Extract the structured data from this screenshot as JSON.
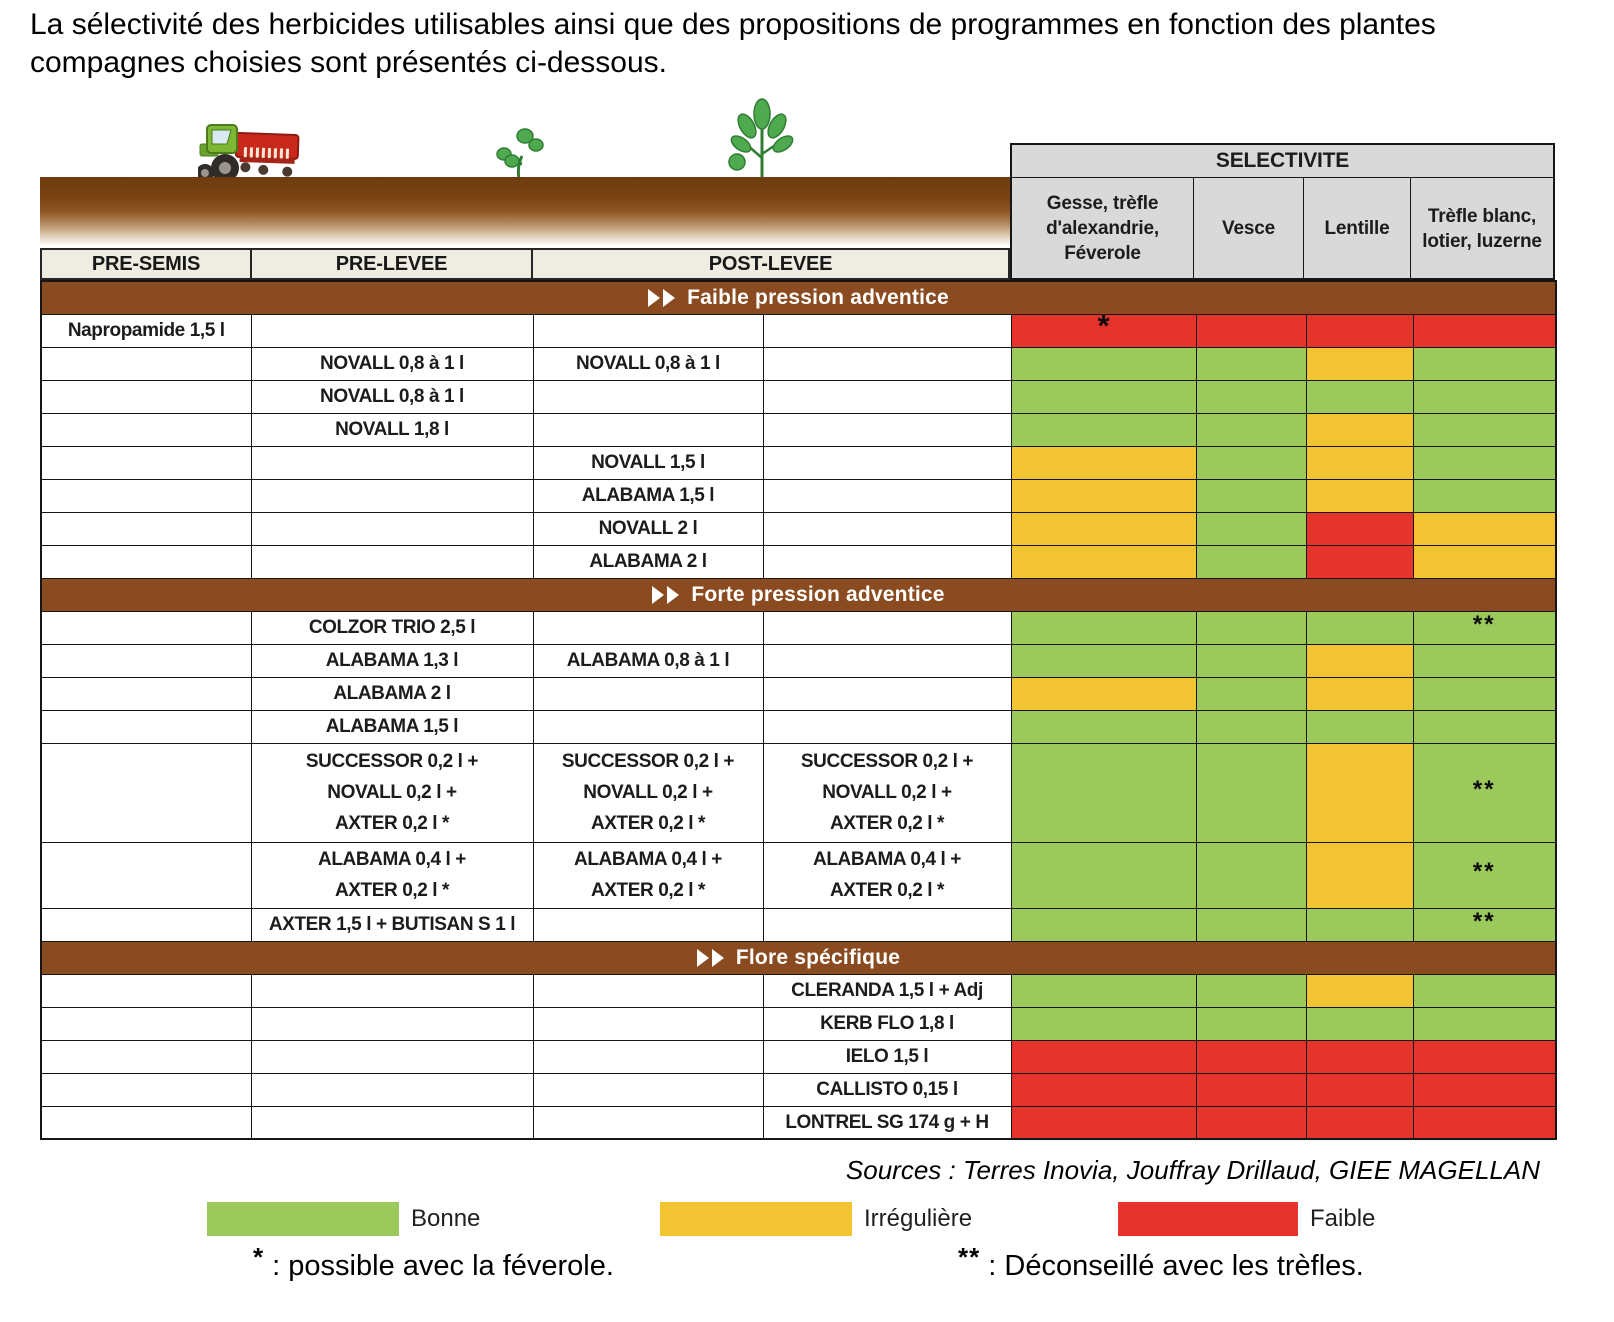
{
  "title": "La sélectivité des herbicides utilisables ainsi que des propositions de programmes en fonction des plantes\ncompagnes choisies sont présentés ci-dessous.",
  "icons": [
    "tractor-seed-drill-icon",
    "seedling-icon",
    "plant-icon"
  ],
  "colors": {
    "good": "#9CC95C",
    "irregular": "#F2C333",
    "poor": "#E6332B",
    "section_bar": "#8B4B20",
    "header_gray": "#D9D9D9",
    "header_cream": "#EFEDE2"
  },
  "table": {
    "stage_headers": [
      "PRE-SEMIS",
      "PRE-LEVEE",
      "POST-LEVEE"
    ],
    "selectivity_title": "SELECTIVITE",
    "crop_headers": [
      "Gesse, trèfle\nd'alexandrie,\nFéverole",
      "Vesce",
      "Lentille",
      "Trèfle blanc,\nlotier, luzerne"
    ],
    "rating_legend_map": {
      "B": "Bonne",
      "I": "Irrégulière",
      "F": "Faible"
    },
    "sections": [
      {
        "label": "Faible pression adventice",
        "rows": [
          {
            "pre_semis": "Napropamide 1,5 l",
            "sel": [
              "F",
              "F",
              "F",
              "F"
            ],
            "notes": [
              "*",
              "",
              "",
              ""
            ]
          },
          {
            "pre_levee": "NOVALL 0,8 à 1 l",
            "post_levee_1": "NOVALL 0,8 à 1 l",
            "sel": [
              "B",
              "B",
              "I",
              "B"
            ]
          },
          {
            "pre_levee": "NOVALL 0,8 à 1 l",
            "sel": [
              "B",
              "B",
              "B",
              "B"
            ]
          },
          {
            "pre_levee": "NOVALL 1,8 l",
            "sel": [
              "B",
              "B",
              "I",
              "B"
            ]
          },
          {
            "post_levee_1": "NOVALL 1,5 l",
            "sel": [
              "I",
              "B",
              "I",
              "B"
            ]
          },
          {
            "post_levee_1": "ALABAMA 1,5 l",
            "sel": [
              "I",
              "B",
              "I",
              "B"
            ]
          },
          {
            "post_levee_1": "NOVALL 2 l",
            "sel": [
              "I",
              "B",
              "F",
              "I"
            ]
          },
          {
            "post_levee_1": "ALABAMA 2 l",
            "sel": [
              "I",
              "B",
              "F",
              "I"
            ]
          }
        ]
      },
      {
        "label": "Forte pression adventice",
        "rows": [
          {
            "pre_levee": "COLZOR TRIO 2,5 l",
            "sel": [
              "B",
              "B",
              "B",
              "B"
            ],
            "notes": [
              "",
              "",
              "",
              "**"
            ]
          },
          {
            "pre_levee": "ALABAMA 1,3 l",
            "post_levee_1": "ALABAMA 0,8 à 1 l",
            "sel": [
              "B",
              "B",
              "I",
              "B"
            ]
          },
          {
            "pre_levee": "ALABAMA 2 l",
            "sel": [
              "I",
              "B",
              "I",
              "B"
            ]
          },
          {
            "pre_levee": "ALABAMA 1,5 l",
            "sel": [
              "B",
              "B",
              "B",
              "B"
            ]
          },
          {
            "pre_levee": "SUCCESSOR 0,2 l +\nNOVALL 0,2 l +\nAXTER 0,2 l *",
            "post_levee_1": "SUCCESSOR 0,2 l +\nNOVALL 0,2 l +\nAXTER 0,2 l *",
            "post_levee_2": "SUCCESSOR 0,2 l +\nNOVALL 0,2 l +\nAXTER 0,2 l *",
            "lines": 3,
            "sel": [
              "B",
              "B",
              "I",
              "B"
            ],
            "notes": [
              "",
              "",
              "",
              "**"
            ]
          },
          {
            "pre_levee": "ALABAMA 0,4 l +\nAXTER 0,2 l *",
            "post_levee_1": "ALABAMA 0,4 l +\nAXTER 0,2 l *",
            "post_levee_2": "ALABAMA 0,4 l +\nAXTER 0,2 l *",
            "lines": 2,
            "sel": [
              "B",
              "B",
              "I",
              "B"
            ],
            "notes": [
              "",
              "",
              "",
              "**"
            ]
          },
          {
            "pre_levee": "AXTER 1,5 l + BUTISAN S 1 l",
            "sel": [
              "B",
              "B",
              "B",
              "B"
            ],
            "notes": [
              "",
              "",
              "",
              "**"
            ]
          }
        ]
      },
      {
        "label": "Flore spécifique",
        "rows": [
          {
            "post_levee_2": "CLERANDA 1,5 l + Adj",
            "sel": [
              "B",
              "B",
              "I",
              "B"
            ]
          },
          {
            "post_levee_2": "KERB FLO 1,8 l",
            "sel": [
              "B",
              "B",
              "B",
              "B"
            ]
          },
          {
            "post_levee_2": "IELO 1,5 l",
            "sel": [
              "F",
              "F",
              "F",
              "F"
            ]
          },
          {
            "post_levee_2": "CALLISTO 0,15 l",
            "sel": [
              "F",
              "F",
              "F",
              "F"
            ]
          },
          {
            "post_levee_2": "LONTREL SG 174 g + H",
            "sel": [
              "F",
              "F",
              "F",
              "F"
            ]
          }
        ]
      }
    ]
  },
  "sources": "Sources : Terres Inovia, Jouffray Drillaud, GIEE MAGELLAN",
  "legend": [
    {
      "label": "Bonne",
      "color": "#9CC95C"
    },
    {
      "label": "Irrégulière",
      "color": "#F2C333"
    },
    {
      "label": "Faible",
      "color": "#E6332B"
    }
  ],
  "footnotes": [
    {
      "marker": "*",
      "text": " : possible avec la féverole."
    },
    {
      "marker": "**",
      "text": " : Déconseillé avec les trèfles."
    }
  ]
}
